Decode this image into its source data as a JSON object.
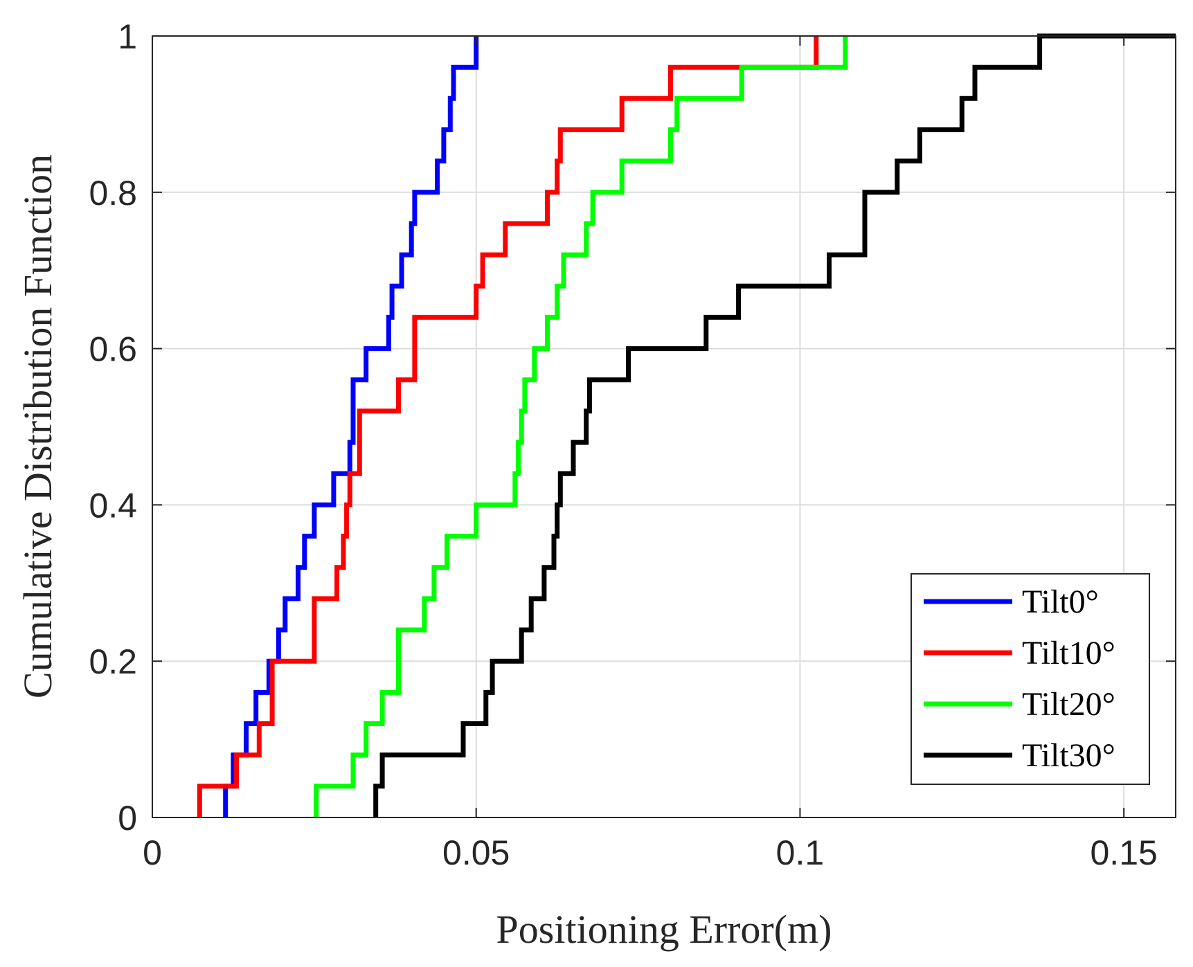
{
  "chart_data": {
    "type": "line",
    "subtype": "empirical-cdf-stairs",
    "title": "",
    "xlabel": "Positioning Error(m)",
    "ylabel": "Cumulative Distribution Function",
    "xlim": [
      0,
      0.158
    ],
    "ylim": [
      0,
      1
    ],
    "xticks": [
      0,
      0.05,
      0.1,
      0.15
    ],
    "xtick_labels": [
      "0",
      "0.05",
      "0.1",
      "0.15"
    ],
    "yticks": [
      0,
      0.2,
      0.4,
      0.6,
      0.8,
      1
    ],
    "ytick_labels": [
      "0",
      "0.2",
      "0.4",
      "0.6",
      "0.8",
      "1"
    ],
    "grid": true,
    "legend_position": "lower-right",
    "series": [
      {
        "name": "Tilt0°",
        "color": "#0000ff",
        "x": [
          0.0113,
          0.0125,
          0.0145,
          0.016,
          0.018,
          0.0195,
          0.0205,
          0.0225,
          0.0235,
          0.025,
          0.028,
          0.0305,
          0.031,
          0.033,
          0.0365,
          0.037,
          0.0385,
          0.04,
          0.0405,
          0.044,
          0.045,
          0.046,
          0.0465,
          0.05,
          0.05
        ],
        "y": [
          0.04,
          0.08,
          0.12,
          0.16,
          0.2,
          0.24,
          0.28,
          0.32,
          0.36,
          0.4,
          0.44,
          0.48,
          0.56,
          0.6,
          0.64,
          0.68,
          0.72,
          0.76,
          0.8,
          0.84,
          0.88,
          0.92,
          0.96,
          1.0,
          1.0
        ]
      },
      {
        "name": "Tilt10°",
        "color": "#ff0000",
        "x": [
          0.0073,
          0.013,
          0.0165,
          0.0185,
          0.025,
          0.0285,
          0.0295,
          0.03,
          0.0305,
          0.032,
          0.038,
          0.0405,
          0.05,
          0.051,
          0.0545,
          0.061,
          0.0625,
          0.063,
          0.0725,
          0.08,
          0.1025,
          0.1025
        ],
        "y": [
          0.04,
          0.08,
          0.12,
          0.2,
          0.28,
          0.32,
          0.36,
          0.4,
          0.44,
          0.52,
          0.56,
          0.64,
          0.68,
          0.72,
          0.76,
          0.8,
          0.84,
          0.88,
          0.92,
          0.96,
          1.0,
          1.0
        ]
      },
      {
        "name": "Tilt20°",
        "color": "#00ff00",
        "x": [
          0.0253,
          0.031,
          0.033,
          0.0355,
          0.038,
          0.042,
          0.0435,
          0.0455,
          0.05,
          0.056,
          0.0565,
          0.057,
          0.0575,
          0.059,
          0.061,
          0.0625,
          0.0635,
          0.067,
          0.068,
          0.0725,
          0.08,
          0.081,
          0.091,
          0.107,
          0.107
        ],
        "y": [
          0.04,
          0.08,
          0.12,
          0.16,
          0.24,
          0.28,
          0.32,
          0.36,
          0.4,
          0.44,
          0.48,
          0.52,
          0.56,
          0.6,
          0.64,
          0.68,
          0.72,
          0.76,
          0.8,
          0.84,
          0.88,
          0.92,
          0.96,
          1.0,
          1.0
        ]
      },
      {
        "name": "Tilt30°",
        "color": "#000000",
        "x": [
          0.0345,
          0.0355,
          0.048,
          0.0515,
          0.0525,
          0.057,
          0.0585,
          0.0605,
          0.062,
          0.0625,
          0.063,
          0.065,
          0.067,
          0.0675,
          0.0735,
          0.0855,
          0.0905,
          0.1045,
          0.11,
          0.115,
          0.1185,
          0.125,
          0.127,
          0.137,
          0.158
        ],
        "y": [
          0.04,
          0.08,
          0.12,
          0.16,
          0.2,
          0.24,
          0.28,
          0.32,
          0.36,
          0.4,
          0.44,
          0.48,
          0.52,
          0.56,
          0.6,
          0.64,
          0.68,
          0.72,
          0.8,
          0.84,
          0.88,
          0.92,
          0.96,
          1.0,
          1.0
        ]
      }
    ]
  }
}
